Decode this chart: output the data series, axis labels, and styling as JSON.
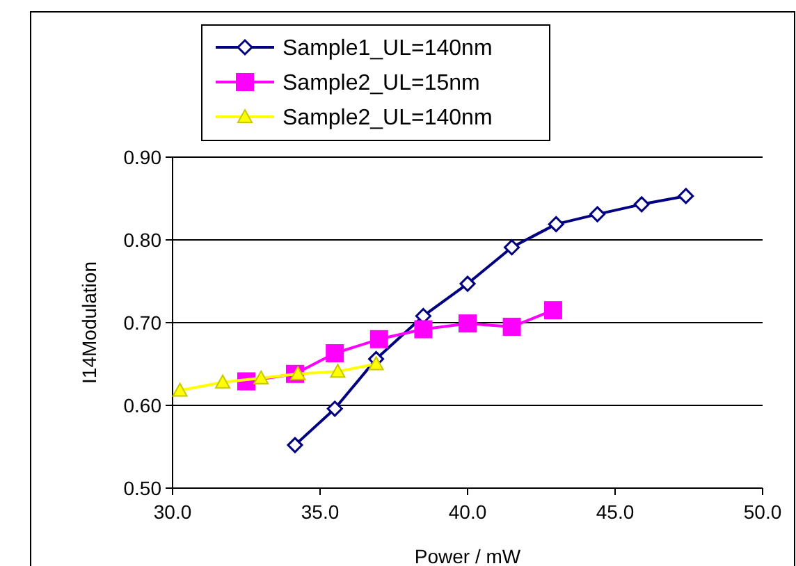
{
  "chart_data": {
    "type": "line",
    "xlabel": "Power / mW",
    "ylabel": "I14Modulation",
    "xlim": [
      30,
      50
    ],
    "ylim": [
      0.5,
      0.9
    ],
    "xticks": [
      {
        "value": 30,
        "label": "30.0"
      },
      {
        "value": 35,
        "label": "35.0"
      },
      {
        "value": 40,
        "label": "40.0"
      },
      {
        "value": 45,
        "label": "45.0"
      },
      {
        "value": 50,
        "label": "50.0"
      }
    ],
    "yticks": [
      {
        "value": 0.5,
        "label": "0.50"
      },
      {
        "value": 0.6,
        "label": "0.60"
      },
      {
        "value": 0.7,
        "label": "0.70"
      },
      {
        "value": 0.8,
        "label": "0.80"
      },
      {
        "value": 0.9,
        "label": "0.90"
      }
    ],
    "grid": "y",
    "legend": "top",
    "series": [
      {
        "name": "Sample1_UL=140nm",
        "color": "#000080",
        "marker": "diamond",
        "x": [
          34.15,
          35.5,
          36.9,
          38.5,
          40.0,
          41.5,
          43.0,
          44.4,
          45.9,
          47.4
        ],
        "values": [
          0.552,
          0.596,
          0.656,
          0.708,
          0.747,
          0.791,
          0.819,
          0.831,
          0.843,
          0.853
        ]
      },
      {
        "name": "Sample2_UL=15nm",
        "color": "#ff00ff",
        "marker": "square",
        "x": [
          32.5,
          34.15,
          35.5,
          37.0,
          38.5,
          40.0,
          41.5,
          42.9
        ],
        "values": [
          0.629,
          0.638,
          0.663,
          0.68,
          0.692,
          0.699,
          0.695,
          0.715
        ]
      },
      {
        "name": "Sample2_UL=140nm",
        "color": "#ffff00",
        "marker": "triangle",
        "x": [
          30.25,
          31.7,
          33.0,
          34.25,
          35.6,
          36.9
        ],
        "values": [
          0.618,
          0.628,
          0.633,
          0.638,
          0.641,
          0.65
        ]
      }
    ]
  }
}
